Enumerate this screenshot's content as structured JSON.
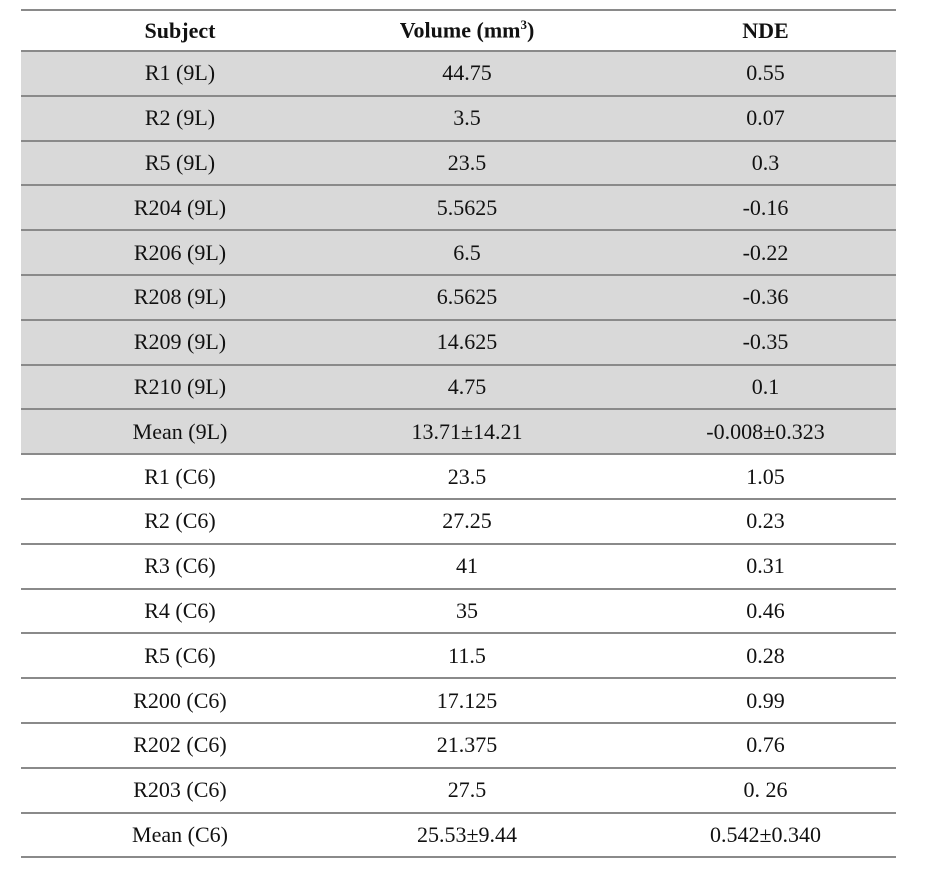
{
  "table": {
    "headers": {
      "subject": "Subject",
      "volume": "Volume (mm",
      "volume_sup": "3",
      "volume_close": ")",
      "nde": "NDE"
    },
    "shaded_color": "#d9d9d9",
    "rows": [
      {
        "subject": "R1 (9L)",
        "volume": "44.75",
        "nde": "0.55",
        "shaded": true
      },
      {
        "subject": "R2 (9L)",
        "volume": "3.5",
        "nde": "0.07",
        "shaded": true
      },
      {
        "subject": "R5 (9L)",
        "volume": "23.5",
        "nde": "0.3",
        "shaded": true
      },
      {
        "subject": "R204 (9L)",
        "volume": "5.5625",
        "nde": "-0.16",
        "shaded": true
      },
      {
        "subject": "R206 (9L)",
        "volume": "6.5",
        "nde": "-0.22",
        "shaded": true
      },
      {
        "subject": "R208 (9L)",
        "volume": "6.5625",
        "nde": "-0.36",
        "shaded": true
      },
      {
        "subject": "R209 (9L)",
        "volume": "14.625",
        "nde": "-0.35",
        "shaded": true
      },
      {
        "subject": "R210 (9L)",
        "volume": "4.75",
        "nde": "0.1",
        "shaded": true
      },
      {
        "subject": "Mean (9L)",
        "volume": "13.71±14.21",
        "nde": "-0.008±0.323",
        "shaded": true
      },
      {
        "subject": "R1 (C6)",
        "volume": "23.5",
        "nde": "1.05",
        "shaded": false
      },
      {
        "subject": "R2 (C6)",
        "volume": "27.25",
        "nde": "0.23",
        "shaded": false
      },
      {
        "subject": "R3 (C6)",
        "volume": "41",
        "nde": "0.31",
        "shaded": false
      },
      {
        "subject": "R4 (C6)",
        "volume": "35",
        "nde": "0.46",
        "shaded": false
      },
      {
        "subject": "R5 (C6)",
        "volume": "11.5",
        "nde": "0.28",
        "shaded": false
      },
      {
        "subject": "R200 (C6)",
        "volume": "17.125",
        "nde": "0.99",
        "shaded": false
      },
      {
        "subject": "R202 (C6)",
        "volume": "21.375",
        "nde": "0.76",
        "shaded": false
      },
      {
        "subject": "R203 (C6)",
        "volume": "27.5",
        "nde": "0. 26",
        "shaded": false
      },
      {
        "subject": "Mean  (C6)",
        "volume": "25.53±9.44",
        "nde": "0.542±0.340",
        "shaded": false
      }
    ]
  }
}
